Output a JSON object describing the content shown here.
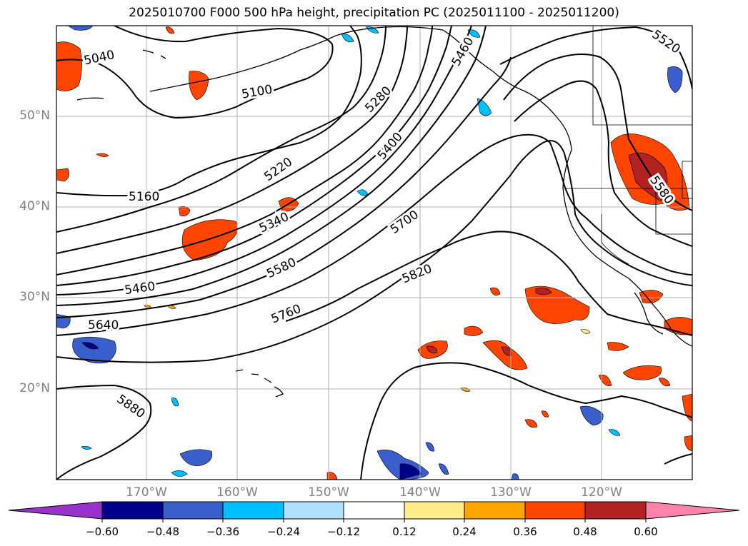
{
  "title": "2025010700 F000 500 hPa height, precipitation PC (2025011100 - 2025011200)",
  "lat_labels": [
    "50°N",
    "40°N",
    "30°N",
    "20°N"
  ],
  "lon_labels": [
    "170°W",
    "160°W",
    "150°W",
    "140°W",
    "130°W",
    "120°W"
  ],
  "contour_labels": [
    "5040",
    "5100",
    "5160",
    "5220",
    "5280",
    "5340",
    "5400",
    "5460",
    "5520",
    "5580",
    "5580",
    "5640",
    "5700",
    "5760",
    "5820",
    "5880",
    "5460"
  ],
  "colorbar": {
    "tick_labels": [
      "−0.60",
      "−0.48",
      "−0.36",
      "−0.24",
      "−0.12",
      "0.12",
      "0.24",
      "0.36",
      "0.48",
      "0.60"
    ],
    "colors": [
      "#9932cc",
      "#00008b",
      "#3a5fcd",
      "#00bfff",
      "#b0e2ff",
      "#ffffff",
      "#ffec8b",
      "#ffa500",
      "#ff4500",
      "#b22222",
      "#ff82ab"
    ]
  }
}
